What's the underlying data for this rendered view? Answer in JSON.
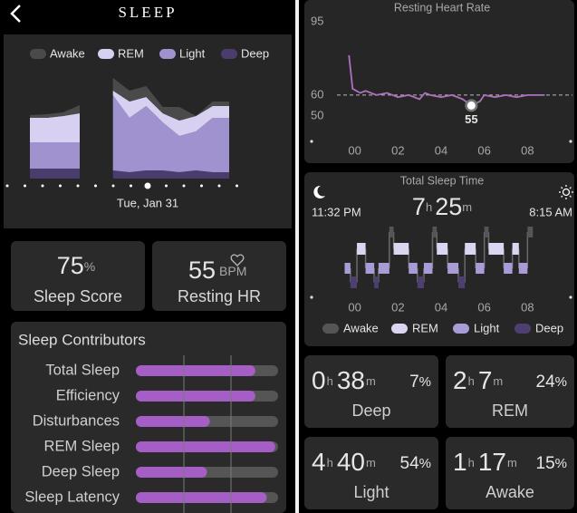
{
  "header": {
    "title": "SLEEP"
  },
  "stages_chart": {
    "type": "area",
    "date": "Tue, Jan 31",
    "ylim": [
      0,
      120
    ],
    "series": [
      {
        "name": "Awake",
        "color": "#4a4a4a",
        "values": [
          3,
          4,
          4,
          9,
          null,
          14,
          12,
          12,
          7,
          15,
          0,
          5,
          5
        ]
      },
      {
        "name": "REM",
        "color": "#d8d0f0",
        "values": [
          27,
          27,
          29,
          32,
          null,
          5,
          18,
          10,
          10,
          17,
          17,
          13,
          13
        ]
      },
      {
        "name": "Light",
        "color": "#a091cf",
        "values": [
          29,
          29,
          29,
          29,
          null,
          83,
          60,
          71,
          53,
          40,
          43,
          60,
          60
        ]
      },
      {
        "name": "Deep",
        "color": "#4b3c6e",
        "values": [
          11,
          11,
          11,
          11,
          null,
          9,
          7,
          9,
          9,
          7,
          9,
          7,
          7
        ]
      }
    ]
  },
  "sleep_score": {
    "value": "75",
    "unit": "%",
    "label": "Sleep Score"
  },
  "resting_hr_card": {
    "value": "55",
    "unit": "BPM",
    "label": "Resting HR"
  },
  "contributors": {
    "title": "Sleep Contributors",
    "items": [
      {
        "label": "Total Sleep",
        "score": 0.84
      },
      {
        "label": "Efficiency",
        "score": 0.84
      },
      {
        "label": "Disturbances",
        "score": 0.52
      },
      {
        "label": "REM Sleep",
        "score": 0.98
      },
      {
        "label": "Deep Sleep",
        "score": 0.5
      },
      {
        "label": "Sleep Latency",
        "score": 0.92
      }
    ]
  },
  "resting_hr": {
    "type": "line",
    "title": "Resting Heart Rate",
    "color": "#b070c0",
    "x": [
      -0.27,
      -0.1,
      0.25,
      0.5,
      1,
      1.5,
      2,
      2.5,
      3,
      3.25,
      3.5,
      4,
      4.5,
      5,
      5.4,
      5.8,
      6,
      6.5,
      7,
      7.5,
      8,
      8.8
    ],
    "values": [
      79,
      63,
      61,
      62,
      60,
      61,
      59,
      60,
      58,
      61,
      60,
      59,
      60,
      58,
      55,
      57,
      60,
      59,
      60,
      59,
      60,
      60
    ],
    "xlim": [
      -2,
      10
    ],
    "ylim": [
      40,
      97
    ],
    "yticks": [
      95,
      60,
      50
    ],
    "reference_line": 60,
    "xticks": [
      {
        "value": 0,
        "label": "00"
      },
      {
        "value": 2,
        "label": "02"
      },
      {
        "value": 4,
        "label": "04"
      },
      {
        "value": 6,
        "label": "06"
      },
      {
        "value": 8,
        "label": "08"
      }
    ],
    "min_point": {
      "x": 5.4,
      "value": 55
    }
  },
  "total_sleep": {
    "type": "hypnogram",
    "title": "Total Sleep Time",
    "start": "11:32 PM",
    "end": "8:15 AM",
    "duration": {
      "hours": "7",
      "h": "h",
      "minutes": "25",
      "m": "m"
    },
    "xlim": [
      -2,
      10
    ],
    "xticks": [
      {
        "value": 0,
        "label": "00"
      },
      {
        "value": 2,
        "label": "02"
      },
      {
        "value": 4,
        "label": "04"
      },
      {
        "value": 6,
        "label": "06"
      },
      {
        "value": 8,
        "label": "08"
      }
    ],
    "stages": [
      {
        "name": "Awake",
        "color": "#555555"
      },
      {
        "name": "REM",
        "color": "#dcd5f2"
      },
      {
        "name": "Light",
        "color": "#a99bd6"
      },
      {
        "name": "Deep",
        "color": "#4d3f70"
      }
    ],
    "segments": [
      [
        -0.47,
        -0.2,
        2
      ],
      [
        -0.2,
        0.1,
        3
      ],
      [
        0.1,
        0.5,
        1
      ],
      [
        0.5,
        0.9,
        2
      ],
      [
        0.9,
        1.1,
        3
      ],
      [
        1.1,
        1.6,
        2
      ],
      [
        1.6,
        1.8,
        0
      ],
      [
        1.8,
        2.5,
        1
      ],
      [
        2.5,
        2.9,
        2
      ],
      [
        2.9,
        3.2,
        3
      ],
      [
        3.2,
        3.6,
        2
      ],
      [
        3.6,
        3.8,
        0
      ],
      [
        3.8,
        4.3,
        1
      ],
      [
        4.3,
        4.8,
        2
      ],
      [
        4.8,
        5.1,
        3
      ],
      [
        5.1,
        5.6,
        1
      ],
      [
        5.6,
        6.0,
        2
      ],
      [
        6.0,
        6.2,
        0
      ],
      [
        6.2,
        6.9,
        1
      ],
      [
        6.9,
        7.3,
        2
      ],
      [
        7.3,
        7.6,
        1
      ],
      [
        7.6,
        8.0,
        2
      ],
      [
        8.0,
        8.25,
        0
      ]
    ]
  },
  "units": {
    "h": "h",
    "m": "m",
    "pct": "%"
  },
  "tiles": [
    {
      "hours": "0",
      "minutes": "38",
      "percent": "7",
      "label": "Deep"
    },
    {
      "hours": "2",
      "minutes": "7",
      "percent": "24",
      "label": "REM"
    },
    {
      "hours": "4",
      "minutes": "40",
      "percent": "54",
      "label": "Light"
    },
    {
      "hours": "1",
      "minutes": "17",
      "percent": "15",
      "label": "Awake"
    }
  ]
}
